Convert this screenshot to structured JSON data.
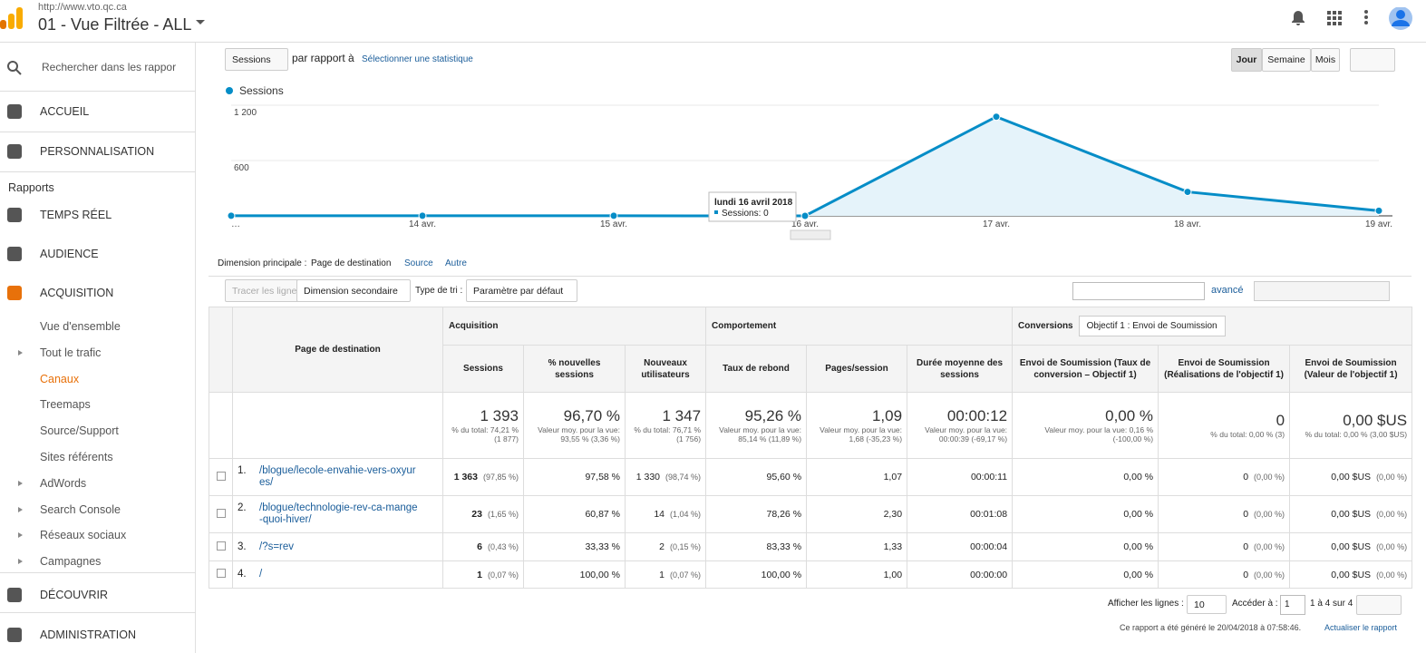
{
  "header": {
    "url": "http://www.vto.qc.ca",
    "view": "01 - Vue Filtrée - ALL"
  },
  "sidebar": {
    "search": "Rechercher dans les rappor",
    "items": [
      "ACCUEIL",
      "PERSONNALISATION",
      "Rapports",
      "TEMPS RÉEL",
      "AUDIENCE",
      "ACQUISITION",
      "Vue d'ensemble",
      "Tout le trafic",
      "Canaux",
      "Treemaps",
      "Source/Support",
      "Sites référents",
      "AdWords",
      "Search Console",
      "Réseaux sociaux",
      "Campagnes",
      "DÉCOUVRIR",
      "ADMINISTRATION"
    ]
  },
  "controls": {
    "metric": "Sessions",
    "compare": "par rapport à",
    "select": "Sélectionner une statistique",
    "periods": [
      "Jour",
      "Semaine",
      "Mois"
    ]
  },
  "chart_data": {
    "type": "line",
    "categories": [
      "…",
      "14 avr.",
      "15 avr.",
      "16 avr.",
      "17 avr.",
      "18 avr.",
      "19 avr."
    ],
    "series": [
      {
        "name": "Sessions",
        "color": "#058dc7",
        "values": [
          1,
          1,
          1,
          0,
          1075,
          260,
          55
        ]
      }
    ],
    "ylim": [
      0,
      1200
    ],
    "yticks": [
      600,
      {
        "value": 1200,
        "label": "1 200"
      }
    ],
    "grid": true,
    "tooltip": {
      "title": "lundi 16 avril 2018",
      "text": "Sessions: 0"
    }
  },
  "dimension": {
    "label": "Dimension principale :",
    "options": [
      "Page de destination",
      "Source",
      "Autre"
    ]
  },
  "toolbar": {
    "plot": "Tracer les lignes",
    "secondary": "Dimension secondaire",
    "sort_label": "Type de tri :",
    "sort": "Paramètre par défaut",
    "advanced": "avancé"
  },
  "table": {
    "groups": [
      "Acquisition",
      "Comportement",
      "Conversions"
    ],
    "goal": "Objectif 1 : Envoi de Soumission",
    "columns": [
      "Page de destination",
      "Sessions",
      "% nouvelles sessions",
      "Nouveaux utilisateurs",
      "Taux de rebond",
      "Pages/session",
      "Durée moyenne des sessions",
      "Envoi de Soumission (Taux de conversion – Objectif 1)",
      "Envoi de Soumission (Réalisations de l'objectif 1)",
      "Envoi de Soumission (Valeur de l'objectif 1)"
    ],
    "totals": [
      {
        "value": "1 393",
        "note": "% du total: 74,21 % (1 877)"
      },
      {
        "value": "96,70 %",
        "note": "Valeur moy. pour la vue: 93,55 % (3,36 %)"
      },
      {
        "value": "1 347",
        "note": "% du total: 76,71 % (1 756)"
      },
      {
        "value": "95,26 %",
        "note": "Valeur moy. pour la vue: 85,14 % (11,89 %)"
      },
      {
        "value": "1,09",
        "note": "Valeur moy. pour la vue: 1,68 (-35,23 %)"
      },
      {
        "value": "00:00:12",
        "note": "Valeur moy. pour la vue: 00:00:39 (-69,17 %)"
      },
      {
        "value": "0,00 %",
        "note": "Valeur moy. pour la vue: 0,16 % (-100,00 %)"
      },
      {
        "value": "0",
        "note": "% du total: 0,00 % (3)"
      },
      {
        "value": "0,00 $US",
        "note": "% du total: 0,00 % (3,00 $US)"
      }
    ],
    "rows": [
      {
        "index": "1.",
        "page": "/blogue/lecole-envahie-vers-oxyures/",
        "cells": [
          [
            "1 363",
            "(97,85 %)"
          ],
          [
            "97,58 %"
          ],
          [
            "1 330",
            "(98,74 %)"
          ],
          [
            "95,60 %"
          ],
          [
            "1,07"
          ],
          [
            "00:00:11"
          ],
          [
            "0,00 %"
          ],
          [
            "0",
            "(0,00 %)"
          ],
          [
            "0,00 $US",
            "(0,00 %)"
          ]
        ]
      },
      {
        "index": "2.",
        "page": "/blogue/technologie-rev-ca-mange-quoi-hiver/",
        "cells": [
          [
            "23",
            "(1,65 %)"
          ],
          [
            "60,87 %"
          ],
          [
            "14",
            "(1,04 %)"
          ],
          [
            "78,26 %"
          ],
          [
            "2,30"
          ],
          [
            "00:01:08"
          ],
          [
            "0,00 %"
          ],
          [
            "0",
            "(0,00 %)"
          ],
          [
            "0,00 $US",
            "(0,00 %)"
          ]
        ]
      },
      {
        "index": "3.",
        "page": "/?s=rev",
        "cells": [
          [
            "6",
            "(0,43 %)"
          ],
          [
            "33,33 %"
          ],
          [
            "2",
            "(0,15 %)"
          ],
          [
            "83,33 %"
          ],
          [
            "1,33"
          ],
          [
            "00:00:04"
          ],
          [
            "0,00 %"
          ],
          [
            "0",
            "(0,00 %)"
          ],
          [
            "0,00 $US",
            "(0,00 %)"
          ]
        ]
      },
      {
        "index": "4.",
        "page": "/",
        "cells": [
          [
            "1",
            "(0,07 %)"
          ],
          [
            "100,00 %"
          ],
          [
            "1",
            "(0,07 %)"
          ],
          [
            "100,00 %"
          ],
          [
            "1,00"
          ],
          [
            "00:00:00"
          ],
          [
            "0,00 %"
          ],
          [
            "0",
            "(0,00 %)"
          ],
          [
            "0,00 $US",
            "(0,00 %)"
          ]
        ]
      }
    ]
  },
  "footer": {
    "rows_label": "Afficher les lignes :",
    "rows": "10",
    "goto_label": "Accéder à :",
    "goto": "1",
    "range": "1 à 4 sur 4",
    "generated": "Ce rapport a été généré le 20/04/2018 à 07:58:46.",
    "refresh": "Actualiser le rapport"
  }
}
